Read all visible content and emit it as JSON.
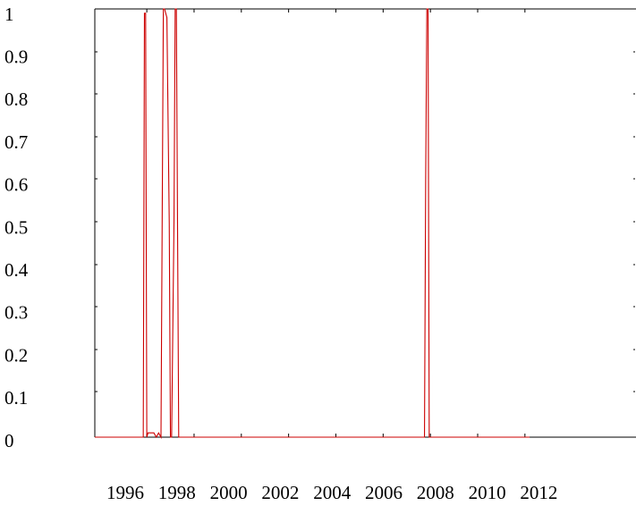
{
  "chart_data": {
    "type": "line",
    "title": "",
    "xlabel": "",
    "ylabel": "",
    "xlim": [
      1993.8,
      2016.7
    ],
    "ylim": [
      0,
      1
    ],
    "grid": false,
    "legend": "none",
    "x_ticks": [
      1996,
      1998,
      2000,
      2002,
      2004,
      2006,
      2008,
      2010,
      2012
    ],
    "x_tick_labels": [
      "1996",
      "1998",
      "2000",
      "2002",
      "2004",
      "2006",
      "2008",
      "2010",
      "2012"
    ],
    "y_tick_labels": [
      "1",
      "0.9",
      "0.8",
      "0.7",
      "0.6",
      "0.5",
      "0.4",
      "0.3",
      "0.2",
      "0.1",
      "0"
    ],
    "series": [
      {
        "color": "#cc0000",
        "x": [
          1993.8,
          1995.85,
          1995.9,
          1995.95,
          1996.0,
          1996.05,
          1996.3,
          1996.4,
          1996.5,
          1996.6,
          1996.65,
          1996.7,
          1996.75,
          1996.85,
          1996.95,
          1997.0,
          1997.05,
          1997.15,
          1997.2,
          1997.25,
          1997.35,
          2007.75,
          2007.8,
          2007.85,
          2007.9,
          2007.95,
          2012.2
        ],
        "values": [
          0,
          0,
          0.99,
          0.99,
          0,
          0.01,
          0.01,
          0,
          0.01,
          0,
          0.5,
          1,
          1,
          0.98,
          0.5,
          0,
          0,
          0.5,
          1,
          1,
          0,
          0,
          0.6,
          1,
          1,
          0,
          0
        ]
      }
    ]
  }
}
